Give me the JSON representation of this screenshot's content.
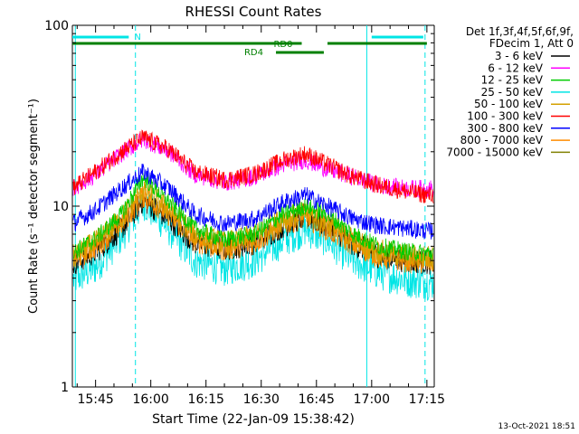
{
  "chart_data": {
    "type": "line",
    "title": "RHESSI Count Rates",
    "xlabel": "Start Time (22-Jan-09 15:38:42)",
    "ylabel": "Count Rate (s⁻¹ detector segment⁻¹)",
    "y_scale": "log",
    "ylim": [
      1,
      100
    ],
    "y_ticks": [
      "1",
      "10",
      "100"
    ],
    "x_range": [
      "15:38:42",
      "17:17:00"
    ],
    "x_ticks": [
      "15:45",
      "16:00",
      "16:15",
      "16:30",
      "16:45",
      "17:00",
      "17:15"
    ],
    "legend": {
      "header": [
        "Det 1f,3f,4f,5f,6f,9f,",
        "FDecim 1, Att 0"
      ],
      "placement": "right"
    },
    "series": [
      {
        "name": "3 - 6 keV",
        "color": "#000000",
        "x": [
          "15:38:42",
          "15:45",
          "15:52",
          "15:58",
          "16:05",
          "16:12",
          "16:20",
          "16:28",
          "16:36",
          "16:42",
          "16:48",
          "16:55",
          "17:02",
          "17:10",
          "17:15"
        ],
        "y": [
          4.8,
          5.6,
          7.5,
          10.8,
          8.5,
          6.3,
          5.8,
          6.3,
          7.8,
          8.8,
          7.8,
          6.2,
          5.3,
          5.0,
          4.9
        ]
      },
      {
        "name": "6 - 12 keV",
        "color": "#ff00ff",
        "x": [
          "15:38:42",
          "15:45",
          "15:52",
          "15:58",
          "16:05",
          "16:12",
          "16:20",
          "16:28",
          "16:36",
          "16:42",
          "16:48",
          "16:55",
          "17:02",
          "17:10",
          "17:15"
        ],
        "y": [
          12.5,
          15.0,
          19.5,
          23.5,
          20.0,
          15.0,
          13.5,
          14.5,
          17.0,
          18.0,
          16.0,
          14.5,
          13.0,
          12.5,
          12.5
        ]
      },
      {
        "name": "12 - 25 keV",
        "color": "#00cc00",
        "x": [
          "15:38:42",
          "15:45",
          "15:52",
          "15:58",
          "16:05",
          "16:12",
          "16:20",
          "16:28",
          "16:36",
          "16:42",
          "16:48",
          "16:55",
          "17:02",
          "17:10",
          "17:15"
        ],
        "y": [
          5.5,
          6.6,
          9.0,
          14.5,
          10.5,
          7.5,
          6.5,
          7.0,
          9.0,
          10.0,
          9.0,
          7.0,
          6.0,
          5.6,
          5.5
        ]
      },
      {
        "name": "25 - 50 keV",
        "color": "#00e5e5",
        "x": [
          "15:38:42",
          "15:45",
          "15:52",
          "15:58",
          "16:05",
          "16:12",
          "16:20",
          "16:28",
          "16:36",
          "16:42",
          "16:48",
          "16:55",
          "17:02",
          "17:10",
          "17:15"
        ],
        "y": [
          3.9,
          4.6,
          6.8,
          10.5,
          7.5,
          5.0,
          4.5,
          5.0,
          6.5,
          7.5,
          6.5,
          5.0,
          4.3,
          3.9,
          3.8
        ]
      },
      {
        "name": "50 - 100 keV",
        "color": "#d4a000",
        "x": [
          "15:38:42",
          "15:45",
          "15:52",
          "15:58",
          "16:05",
          "16:12",
          "16:20",
          "16:28",
          "16:36",
          "16:42",
          "16:48",
          "16:55",
          "17:02",
          "17:10",
          "17:15"
        ],
        "y": [
          5.2,
          6.3,
          8.5,
          12.5,
          9.5,
          7.0,
          6.2,
          6.8,
          8.5,
          9.2,
          8.0,
          6.5,
          5.6,
          5.3,
          5.2
        ]
      },
      {
        "name": "100 - 300 keV",
        "color": "#ff0000",
        "x": [
          "15:38:42",
          "15:45",
          "15:52",
          "15:58",
          "16:05",
          "16:12",
          "16:20",
          "16:28",
          "16:36",
          "16:42",
          "16:48",
          "16:55",
          "17:02",
          "17:10",
          "17:15"
        ],
        "y": [
          12.5,
          15.5,
          20.0,
          24.0,
          20.5,
          15.5,
          14.0,
          15.0,
          18.0,
          19.5,
          17.0,
          14.5,
          13.0,
          12.0,
          11.5
        ]
      },
      {
        "name": "300 - 800 keV",
        "color": "#0000ff",
        "x": [
          "15:38:42",
          "15:45",
          "15:52",
          "15:58",
          "16:05",
          "16:12",
          "16:20",
          "16:28",
          "16:36",
          "16:42",
          "16:48",
          "16:55",
          "17:02",
          "17:10",
          "17:15"
        ],
        "y": [
          8.0,
          9.5,
          12.5,
          15.5,
          12.5,
          9.0,
          8.0,
          8.5,
          10.5,
          11.5,
          10.0,
          8.5,
          7.8,
          7.5,
          7.3
        ]
      },
      {
        "name": "800 - 7000 keV",
        "color": "#ff8c00",
        "x": [
          "15:38:42",
          "15:45",
          "15:52",
          "15:58",
          "16:05",
          "16:12",
          "16:20",
          "16:28",
          "16:36",
          "16:42",
          "16:48",
          "16:55",
          "17:02",
          "17:10",
          "17:15"
        ],
        "y": [
          5.0,
          6.0,
          8.0,
          11.5,
          9.0,
          6.5,
          5.8,
          6.3,
          8.0,
          8.8,
          7.5,
          6.2,
          5.3,
          5.0,
          4.9
        ]
      },
      {
        "name": "7000 - 15000 keV",
        "color": "#808000",
        "x": [],
        "y": []
      }
    ],
    "flags": [
      {
        "label": "N",
        "color": "#00e5e5",
        "segments": [
          [
            "15:38:42",
            "15:55"
          ],
          [
            "17:00",
            "17:15"
          ]
        ]
      },
      {
        "label": "",
        "color": "#008000",
        "segments": [
          [
            "15:38:42",
            "16:41"
          ],
          [
            "16:48",
            "17:15"
          ]
        ]
      },
      {
        "label": "RD0",
        "color": "#008000"
      },
      {
        "label": "RD4",
        "color": "#008000",
        "segments": [
          [
            "16:34",
            "16:47"
          ]
        ]
      }
    ],
    "vertical_markers": [
      {
        "x": "15:39:30",
        "color": "#00e5e5",
        "style": "solid"
      },
      {
        "x": "15:55:50",
        "color": "#00e5e5",
        "style": "dashed"
      },
      {
        "x": "16:58:40",
        "color": "#00e5e5",
        "style": "solid"
      },
      {
        "x": "17:14:30",
        "color": "#00e5e5",
        "style": "dashed"
      }
    ],
    "grid": false
  },
  "footer": {
    "timestamp": "13-Oct-2021 18:51"
  }
}
